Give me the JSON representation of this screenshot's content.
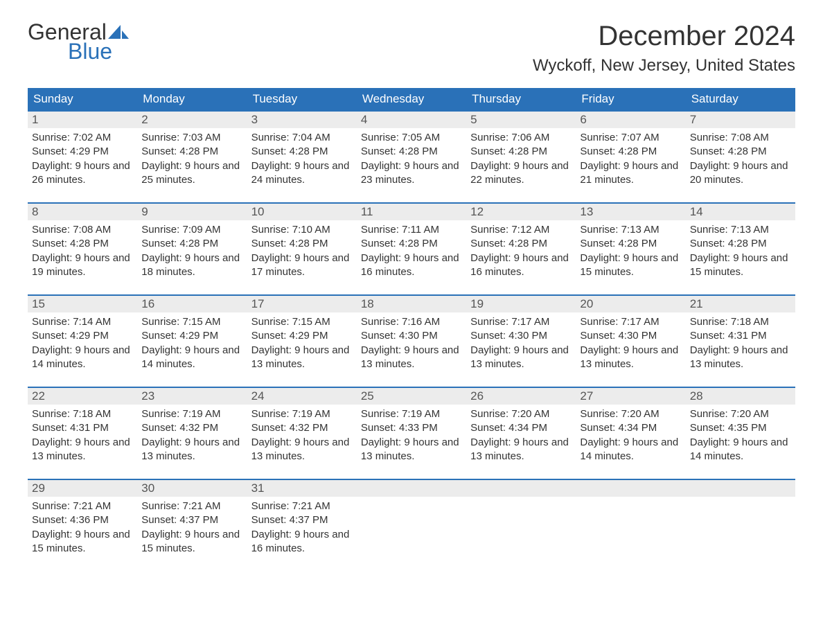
{
  "logo": {
    "word1": "General",
    "word2": "Blue"
  },
  "title": "December 2024",
  "location": "Wyckoff, New Jersey, United States",
  "colors": {
    "brand_blue": "#2a71b8",
    "header_bg": "#2a71b8",
    "header_text": "#ffffff",
    "daynum_bg": "#ececec",
    "body_text": "#333333",
    "page_bg": "#ffffff"
  },
  "dow": [
    "Sunday",
    "Monday",
    "Tuesday",
    "Wednesday",
    "Thursday",
    "Friday",
    "Saturday"
  ],
  "weeks": [
    [
      {
        "n": "1",
        "sr": "7:02 AM",
        "ss": "4:29 PM",
        "dl": "9 hours and 26 minutes."
      },
      {
        "n": "2",
        "sr": "7:03 AM",
        "ss": "4:28 PM",
        "dl": "9 hours and 25 minutes."
      },
      {
        "n": "3",
        "sr": "7:04 AM",
        "ss": "4:28 PM",
        "dl": "9 hours and 24 minutes."
      },
      {
        "n": "4",
        "sr": "7:05 AM",
        "ss": "4:28 PM",
        "dl": "9 hours and 23 minutes."
      },
      {
        "n": "5",
        "sr": "7:06 AM",
        "ss": "4:28 PM",
        "dl": "9 hours and 22 minutes."
      },
      {
        "n": "6",
        "sr": "7:07 AM",
        "ss": "4:28 PM",
        "dl": "9 hours and 21 minutes."
      },
      {
        "n": "7",
        "sr": "7:08 AM",
        "ss": "4:28 PM",
        "dl": "9 hours and 20 minutes."
      }
    ],
    [
      {
        "n": "8",
        "sr": "7:08 AM",
        "ss": "4:28 PM",
        "dl": "9 hours and 19 minutes."
      },
      {
        "n": "9",
        "sr": "7:09 AM",
        "ss": "4:28 PM",
        "dl": "9 hours and 18 minutes."
      },
      {
        "n": "10",
        "sr": "7:10 AM",
        "ss": "4:28 PM",
        "dl": "9 hours and 17 minutes."
      },
      {
        "n": "11",
        "sr": "7:11 AM",
        "ss": "4:28 PM",
        "dl": "9 hours and 16 minutes."
      },
      {
        "n": "12",
        "sr": "7:12 AM",
        "ss": "4:28 PM",
        "dl": "9 hours and 16 minutes."
      },
      {
        "n": "13",
        "sr": "7:13 AM",
        "ss": "4:28 PM",
        "dl": "9 hours and 15 minutes."
      },
      {
        "n": "14",
        "sr": "7:13 AM",
        "ss": "4:28 PM",
        "dl": "9 hours and 15 minutes."
      }
    ],
    [
      {
        "n": "15",
        "sr": "7:14 AM",
        "ss": "4:29 PM",
        "dl": "9 hours and 14 minutes."
      },
      {
        "n": "16",
        "sr": "7:15 AM",
        "ss": "4:29 PM",
        "dl": "9 hours and 14 minutes."
      },
      {
        "n": "17",
        "sr": "7:15 AM",
        "ss": "4:29 PM",
        "dl": "9 hours and 13 minutes."
      },
      {
        "n": "18",
        "sr": "7:16 AM",
        "ss": "4:30 PM",
        "dl": "9 hours and 13 minutes."
      },
      {
        "n": "19",
        "sr": "7:17 AM",
        "ss": "4:30 PM",
        "dl": "9 hours and 13 minutes."
      },
      {
        "n": "20",
        "sr": "7:17 AM",
        "ss": "4:30 PM",
        "dl": "9 hours and 13 minutes."
      },
      {
        "n": "21",
        "sr": "7:18 AM",
        "ss": "4:31 PM",
        "dl": "9 hours and 13 minutes."
      }
    ],
    [
      {
        "n": "22",
        "sr": "7:18 AM",
        "ss": "4:31 PM",
        "dl": "9 hours and 13 minutes."
      },
      {
        "n": "23",
        "sr": "7:19 AM",
        "ss": "4:32 PM",
        "dl": "9 hours and 13 minutes."
      },
      {
        "n": "24",
        "sr": "7:19 AM",
        "ss": "4:32 PM",
        "dl": "9 hours and 13 minutes."
      },
      {
        "n": "25",
        "sr": "7:19 AM",
        "ss": "4:33 PM",
        "dl": "9 hours and 13 minutes."
      },
      {
        "n": "26",
        "sr": "7:20 AM",
        "ss": "4:34 PM",
        "dl": "9 hours and 13 minutes."
      },
      {
        "n": "27",
        "sr": "7:20 AM",
        "ss": "4:34 PM",
        "dl": "9 hours and 14 minutes."
      },
      {
        "n": "28",
        "sr": "7:20 AM",
        "ss": "4:35 PM",
        "dl": "9 hours and 14 minutes."
      }
    ],
    [
      {
        "n": "29",
        "sr": "7:21 AM",
        "ss": "4:36 PM",
        "dl": "9 hours and 15 minutes."
      },
      {
        "n": "30",
        "sr": "7:21 AM",
        "ss": "4:37 PM",
        "dl": "9 hours and 15 minutes."
      },
      {
        "n": "31",
        "sr": "7:21 AM",
        "ss": "4:37 PM",
        "dl": "9 hours and 16 minutes."
      },
      null,
      null,
      null,
      null
    ]
  ],
  "labels": {
    "sunrise": "Sunrise: ",
    "sunset": "Sunset: ",
    "daylight": "Daylight: "
  }
}
